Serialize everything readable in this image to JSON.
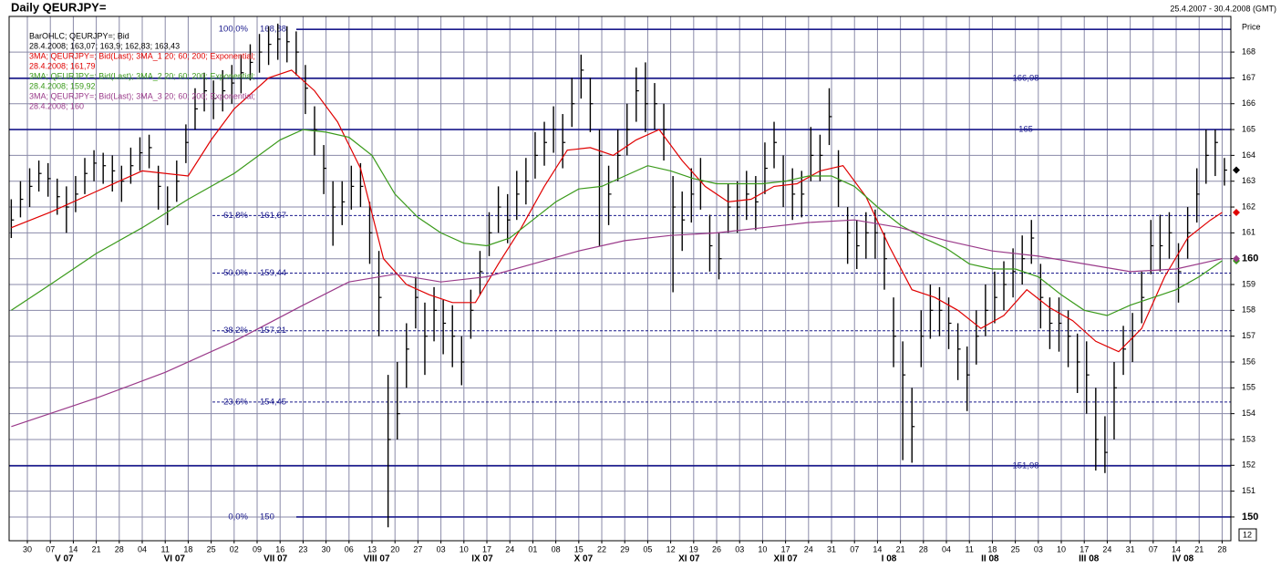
{
  "chart_data": {
    "type": "ohlc",
    "title": "Daily QEURJPY=",
    "date_range": "25.4.2007 - 30.4.2008 (GMT)",
    "y_label": "Price",
    "corner_label": "12",
    "xlim": [
      -0.794,
      52.38
    ],
    "ylim": [
      149.08,
      169.38
    ],
    "yticks": [
      150,
      151,
      152,
      153,
      154,
      155,
      156,
      157,
      158,
      159,
      160,
      161,
      162,
      163,
      164,
      165,
      166,
      167,
      168
    ],
    "bold_yticks": [
      150,
      160
    ],
    "xticks": [
      {
        "value": 0,
        "label": "30"
      },
      {
        "value": 1,
        "label": "07"
      },
      {
        "value": 2,
        "label": "14"
      },
      {
        "value": 3,
        "label": "21"
      },
      {
        "value": 4,
        "label": "28"
      },
      {
        "value": 5,
        "label": "04"
      },
      {
        "value": 6,
        "label": "11"
      },
      {
        "value": 7,
        "label": "18"
      },
      {
        "value": 8,
        "label": "25"
      },
      {
        "value": 9,
        "label": "02"
      },
      {
        "value": 10,
        "label": "09"
      },
      {
        "value": 11,
        "label": "16"
      },
      {
        "value": 12,
        "label": "23"
      },
      {
        "value": 13,
        "label": "30"
      },
      {
        "value": 14,
        "label": "06"
      },
      {
        "value": 15,
        "label": "13"
      },
      {
        "value": 16,
        "label": "20"
      },
      {
        "value": 17,
        "label": "27"
      },
      {
        "value": 18,
        "label": "03"
      },
      {
        "value": 19,
        "label": "10"
      },
      {
        "value": 20,
        "label": "17"
      },
      {
        "value": 21,
        "label": "24"
      },
      {
        "value": 22,
        "label": "01"
      },
      {
        "value": 23,
        "label": "08"
      },
      {
        "value": 24,
        "label": "15"
      },
      {
        "value": 25,
        "label": "22"
      },
      {
        "value": 26,
        "label": "29"
      },
      {
        "value": 27,
        "label": "05"
      },
      {
        "value": 28,
        "label": "12"
      },
      {
        "value": 29,
        "label": "19"
      },
      {
        "value": 30,
        "label": "26"
      },
      {
        "value": 31,
        "label": "03"
      },
      {
        "value": 32,
        "label": "10"
      },
      {
        "value": 33,
        "label": "17"
      },
      {
        "value": 34,
        "label": "24"
      },
      {
        "value": 35,
        "label": "31"
      },
      {
        "value": 36,
        "label": "07"
      },
      {
        "value": 37,
        "label": "14"
      },
      {
        "value": 38,
        "label": "21"
      },
      {
        "value": 39,
        "label": "28"
      },
      {
        "value": 40,
        "label": "04"
      },
      {
        "value": 41,
        "label": "11"
      },
      {
        "value": 42,
        "label": "18"
      },
      {
        "value": 43,
        "label": "25"
      },
      {
        "value": 44,
        "label": "03"
      },
      {
        "value": 45,
        "label": "10"
      },
      {
        "value": 46,
        "label": "17"
      },
      {
        "value": 47,
        "label": "24"
      },
      {
        "value": 48,
        "label": "31"
      },
      {
        "value": 49,
        "label": "07"
      },
      {
        "value": 50,
        "label": "14"
      },
      {
        "value": 51,
        "label": "21"
      },
      {
        "value": 52,
        "label": "28"
      }
    ],
    "month_ticks": [
      {
        "value": 1.6,
        "label": "V 07"
      },
      {
        "value": 6.4,
        "label": "VI 07"
      },
      {
        "value": 10.8,
        "label": "VII 07"
      },
      {
        "value": 15.2,
        "label": "VIII 07"
      },
      {
        "value": 19.8,
        "label": "IX 07"
      },
      {
        "value": 24.2,
        "label": "X 07"
      },
      {
        "value": 28.8,
        "label": "XI 07"
      },
      {
        "value": 33,
        "label": "XII 07"
      },
      {
        "value": 37.5,
        "label": "I 08"
      },
      {
        "value": 41.9,
        "label": "II 08"
      },
      {
        "value": 46.2,
        "label": "III 08"
      },
      {
        "value": 50.3,
        "label": "IV 08"
      }
    ],
    "fib_levels": [
      {
        "percent": {
          "value": 100,
          "label": "100,0%"
        },
        "price": {
          "value": 168.88,
          "label": "168,88"
        },
        "solid": true
      },
      {
        "percent": {
          "value": 61.8,
          "label": "61,8%"
        },
        "price": {
          "value": 161.67,
          "label": "161,67"
        },
        "solid": false
      },
      {
        "percent": {
          "value": 50,
          "label": "50,0%"
        },
        "price": {
          "value": 159.44,
          "label": "159,44"
        },
        "solid": false
      },
      {
        "percent": {
          "value": 38.2,
          "label": "38,2%"
        },
        "price": {
          "value": 157.21,
          "label": "157,21"
        },
        "solid": false
      },
      {
        "percent": {
          "value": 23.6,
          "label": "23,6%"
        },
        "price": {
          "value": 154.45,
          "label": "154,45"
        },
        "solid": false
      },
      {
        "percent": {
          "value": 0,
          "label": "0,0%"
        },
        "price": 150,
        "solid": true
      }
    ],
    "hlines": [
      {
        "value": 166.98,
        "label": "166,98"
      },
      165,
      {
        "value": 151.98,
        "label": "151,98"
      }
    ],
    "bars": {
      "name": "BarOHLC; QEURJPY=; Bid",
      "detail": "28.4.2008; 163,07; 163,9; 162,83; 163,43",
      "color": "#000000",
      "x": [
        -0.7,
        -0.3,
        0.1,
        0.5,
        0.9,
        1.3,
        1.7,
        2.1,
        2.5,
        2.9,
        3.3,
        3.7,
        4.1,
        4.5,
        4.9,
        5.3,
        5.7,
        6.1,
        6.5,
        6.9,
        7.3,
        7.7,
        8.1,
        8.5,
        8.9,
        9.3,
        9.7,
        10.1,
        10.5,
        10.9,
        11.3,
        11.7,
        12.1,
        12.5,
        12.9,
        13.3,
        13.7,
        14.1,
        14.5,
        14.9,
        15.3,
        15.7,
        16.1,
        16.5,
        16.9,
        17.3,
        17.7,
        18.1,
        18.5,
        18.9,
        19.3,
        19.7,
        20.1,
        20.5,
        20.9,
        21.3,
        21.7,
        22.1,
        22.5,
        22.9,
        23.3,
        23.7,
        24.1,
        24.5,
        24.9,
        25.3,
        25.7,
        26.1,
        26.5,
        26.9,
        27.3,
        27.7,
        28.1,
        28.5,
        28.9,
        29.3,
        29.7,
        30.1,
        30.5,
        30.9,
        31.3,
        31.7,
        32.1,
        32.5,
        32.9,
        33.3,
        33.7,
        34.1,
        34.5,
        34.9,
        35.3,
        35.7,
        36.1,
        36.5,
        36.9,
        37.3,
        37.7,
        38.1,
        38.5,
        38.9,
        39.3,
        39.7,
        40.1,
        40.5,
        40.9,
        41.3,
        41.7,
        42.1,
        42.5,
        42.9,
        43.3,
        43.7,
        44.1,
        44.5,
        44.9,
        45.3,
        45.7,
        46.1,
        46.5,
        46.9,
        47.3,
        47.7,
        48.1,
        48.5,
        48.9,
        49.3,
        49.7,
        50.1,
        50.5,
        50.9,
        51.3,
        51.7,
        52.1
      ],
      "high": [
        162.3,
        163.0,
        163.5,
        163.8,
        163.7,
        163.1,
        162.8,
        163.2,
        163.9,
        164.2,
        164.1,
        164.0,
        163.6,
        164.3,
        164.7,
        164.8,
        163.6,
        162.8,
        163.8,
        165.2,
        166.6,
        167.2,
        166.9,
        167.3,
        167.5,
        167.9,
        168.3,
        168.7,
        169.0,
        169.1,
        169.0,
        168.8,
        167.5,
        165.9,
        164.4,
        163.0,
        163.0,
        163.6,
        163.7,
        162.2,
        160.3,
        155.5,
        156.0,
        157.5,
        159.3,
        158.3,
        158.9,
        158.4,
        158.2,
        157.0,
        158.8,
        160.3,
        161.8,
        162.8,
        162.5,
        163.4,
        163.9,
        164.9,
        165.3,
        165.9,
        165.6,
        167.0,
        167.9,
        167.0,
        165.0,
        163.6,
        165.0,
        166.0,
        167.4,
        167.6,
        166.8,
        166.0,
        163.2,
        162.6,
        163.5,
        163.9,
        161.7,
        161.0,
        162.9,
        163.0,
        163.4,
        163.2,
        164.5,
        165.3,
        164.0,
        163.5,
        163.4,
        165.1,
        164.8,
        166.6,
        164.2,
        162.0,
        161.5,
        161.8,
        161.9,
        161.0,
        158.5,
        156.8,
        155.0,
        158.0,
        159.0,
        158.9,
        158.5,
        157.5,
        156.6,
        158.0,
        159.0,
        159.5,
        159.9,
        160.4,
        160.9,
        161.5,
        159.8,
        158.5,
        158.5,
        158.0,
        157.1,
        156.8,
        155.0,
        153.9,
        156.0,
        157.4,
        157.9,
        159.5,
        161.5,
        161.7,
        161.8,
        160.6,
        162.0,
        163.5,
        165.0,
        165.0,
        163.9
      ],
      "low": [
        160.8,
        161.6,
        162.0,
        162.6,
        162.4,
        161.7,
        161.0,
        161.8,
        162.5,
        163.0,
        162.9,
        162.6,
        162.2,
        162.9,
        163.4,
        163.5,
        161.9,
        161.3,
        162.2,
        163.7,
        165.0,
        165.7,
        165.4,
        165.7,
        166.0,
        166.4,
        166.9,
        167.2,
        167.5,
        167.7,
        167.6,
        167.1,
        165.6,
        164.0,
        162.5,
        160.5,
        161.3,
        161.9,
        162.0,
        159.8,
        157.0,
        149.6,
        153.0,
        155.0,
        157.3,
        155.5,
        156.8,
        156.3,
        155.8,
        155.1,
        156.9,
        158.6,
        160.1,
        161.0,
        160.6,
        161.5,
        162.1,
        163.1,
        163.6,
        164.1,
        163.5,
        165.1,
        166.2,
        164.9,
        160.5,
        161.3,
        163.0,
        164.0,
        165.3,
        164.9,
        165.0,
        163.8,
        158.7,
        160.3,
        161.4,
        161.9,
        159.5,
        159.2,
        161.0,
        161.0,
        161.5,
        161.1,
        162.5,
        163.5,
        162.0,
        161.5,
        161.6,
        163.0,
        163.0,
        164.4,
        162.0,
        159.8,
        159.6,
        160.0,
        160.0,
        158.8,
        155.8,
        152.2,
        152.1,
        155.8,
        156.9,
        157.0,
        156.5,
        155.3,
        154.1,
        155.9,
        157.0,
        157.5,
        158.0,
        158.5,
        159.0,
        159.8,
        157.3,
        156.5,
        156.4,
        155.8,
        154.8,
        154.0,
        151.8,
        151.7,
        153.0,
        155.5,
        156.0,
        157.5,
        159.4,
        159.5,
        160.0,
        158.3,
        160.0,
        161.4,
        162.9,
        163.2,
        162.83
      ],
      "close": [
        161.5,
        162.3,
        162.8,
        163.3,
        163.1,
        162.4,
        162.0,
        162.5,
        163.3,
        163.7,
        163.6,
        163.4,
        163.0,
        163.6,
        164.1,
        164.3,
        162.8,
        162.0,
        163.0,
        164.5,
        165.8,
        166.5,
        166.2,
        166.5,
        166.8,
        167.2,
        167.6,
        168.0,
        168.3,
        168.5,
        168.4,
        168.0,
        166.6,
        165.0,
        163.5,
        162.0,
        162.2,
        162.8,
        162.8,
        161.0,
        158.5,
        153.0,
        154.0,
        156.5,
        158.5,
        157.0,
        158.0,
        157.5,
        157.0,
        156.0,
        158.0,
        159.5,
        161.0,
        162.0,
        161.5,
        162.5,
        163.0,
        164.0,
        164.5,
        165.0,
        164.5,
        166.0,
        167.3,
        166.0,
        164.0,
        162.5,
        164.0,
        165.0,
        166.5,
        166.0,
        166.0,
        165.0,
        162.0,
        161.5,
        162.5,
        163.0,
        160.5,
        160.0,
        162.0,
        162.0,
        162.5,
        162.2,
        163.5,
        164.5,
        163.0,
        162.5,
        162.5,
        164.0,
        164.0,
        165.5,
        163.0,
        161.0,
        160.5,
        161.0,
        161.0,
        160.0,
        157.0,
        155.5,
        153.5,
        157.0,
        158.0,
        158.0,
        157.5,
        156.5,
        155.5,
        157.0,
        158.0,
        158.5,
        159.0,
        159.5,
        160.0,
        160.8,
        158.5,
        157.5,
        157.5,
        157.0,
        156.0,
        155.5,
        153.0,
        152.5,
        155.0,
        156.5,
        157.0,
        158.5,
        160.5,
        160.5,
        161.0,
        159.5,
        161.0,
        162.5,
        164.0,
        164.5,
        163.43
      ]
    },
    "series": [
      {
        "name": "3MA; QEURJPY=; Bid(Last); 3MA_1 20; 60; 200; Exponential;",
        "detail": "28.4.2008; 161,79",
        "color": "#e00000",
        "x": [
          -0.7,
          1,
          3,
          5,
          7,
          8,
          9,
          10.5,
          11.5,
          12.5,
          13.5,
          14.5,
          15.5,
          16.5,
          17.5,
          18.5,
          19.5,
          20.5,
          21.5,
          22.5,
          23.5,
          24.5,
          25.5,
          26.5,
          27.5,
          28.5,
          29.5,
          30.5,
          31.5,
          32.5,
          33.5,
          34.5,
          35.5,
          36.5,
          37.5,
          38.5,
          39.5,
          40.5,
          41.5,
          42.5,
          43.5,
          44.5,
          45.5,
          46.5,
          47.5,
          48.5,
          49.5,
          50.5,
          51.5,
          52
        ],
        "values": [
          161.2,
          161.8,
          162.6,
          163.4,
          163.2,
          164.6,
          165.8,
          167,
          167.3,
          166.5,
          165.3,
          163.5,
          160,
          159,
          158.6,
          158.3,
          158.3,
          159.8,
          161.2,
          162.8,
          164.2,
          164.3,
          164,
          164.6,
          165,
          163.8,
          162.8,
          162.2,
          162.3,
          162.8,
          162.9,
          163.4,
          163.6,
          162.4,
          160.5,
          158.8,
          158.5,
          158,
          157.3,
          157.8,
          158.8,
          158.1,
          157.6,
          156.8,
          156.4,
          157.3,
          159.3,
          160.8,
          161.5,
          161.79
        ]
      },
      {
        "name": "3MA; QEURJPY=; Bid(Last); 3MA_2 20; 60; 200; Exponential;",
        "detail": "28.4.2008; 159,92",
        "color": "#3a9a1a",
        "x": [
          -0.7,
          1,
          3,
          5,
          7,
          9,
          11,
          12,
          13,
          14,
          15,
          16,
          17,
          18,
          19,
          20,
          21,
          22,
          23,
          24,
          25,
          26,
          27,
          28,
          29,
          30,
          31,
          32,
          33,
          34,
          35,
          36,
          37,
          38,
          39,
          40,
          41,
          42,
          43,
          44,
          45,
          46,
          47,
          48,
          49,
          50,
          51,
          52
        ],
        "values": [
          158,
          159,
          160.2,
          161.2,
          162.3,
          163.3,
          164.6,
          165,
          164.9,
          164.7,
          164,
          162.5,
          161.6,
          161,
          160.6,
          160.5,
          160.8,
          161.5,
          162.2,
          162.7,
          162.8,
          163.2,
          163.6,
          163.4,
          163.1,
          162.9,
          162.9,
          162.9,
          163,
          163.2,
          163.2,
          162.8,
          162,
          161.3,
          160.8,
          160.4,
          159.8,
          159.6,
          159.6,
          159.3,
          158.6,
          158,
          157.8,
          158.2,
          158.5,
          158.8,
          159.3,
          159.92
        ]
      },
      {
        "name": "3MA; QEURJPY=; Bid(Last); 3MA_3 20; 60; 200; Exponential;",
        "detail": "28.4.2008; 160",
        "color": "#9a3a8a",
        "x": [
          -0.7,
          3,
          6,
          9,
          12,
          14,
          16,
          18,
          20,
          22,
          24,
          26,
          28,
          30,
          32,
          34,
          36,
          38,
          40,
          42,
          44,
          46,
          48,
          50,
          52
        ],
        "values": [
          153.5,
          154.6,
          155.6,
          156.8,
          158.2,
          159.1,
          159.4,
          159.1,
          159.3,
          159.8,
          160.3,
          160.7,
          160.9,
          161,
          161.2,
          161.4,
          161.5,
          161.2,
          160.7,
          160.3,
          160.1,
          159.8,
          159.5,
          159.6,
          160
        ]
      }
    ]
  }
}
